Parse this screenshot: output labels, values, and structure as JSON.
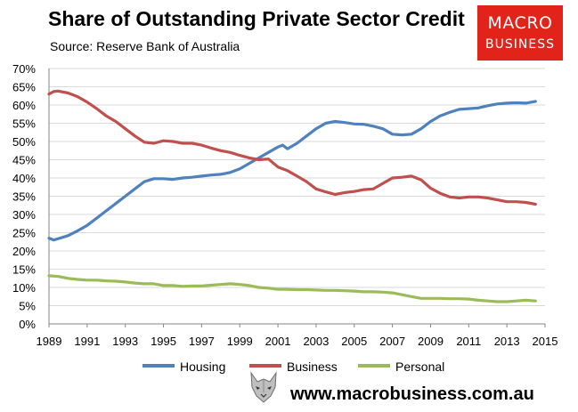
{
  "header": {
    "title": "Share of Outstanding Private Sector Credit",
    "source": "Source: Reserve Bank of Australia"
  },
  "logo": {
    "line1": "MACRO",
    "line2": "BUSINESS"
  },
  "footer": {
    "website": "www.macrobusiness.com.au"
  },
  "colors": {
    "housing": "#4f81bd",
    "business": "#c0504d",
    "personal": "#9bbb59",
    "logo": "#e2231a",
    "grid": "#d9d9d9"
  },
  "chart_data": {
    "type": "line",
    "title": "Share of Outstanding Private Sector Credit",
    "xlabel": "",
    "ylabel": "",
    "xlim": [
      1989,
      2015
    ],
    "ylim": [
      0,
      70
    ],
    "x_ticks": [
      "1989",
      "1991",
      "1993",
      "1995",
      "1997",
      "1999",
      "2001",
      "2003",
      "2005",
      "2007",
      "2009",
      "2011",
      "2013",
      "2015"
    ],
    "y_ticks": [
      "0%",
      "5%",
      "10%",
      "15%",
      "20%",
      "25%",
      "30%",
      "35%",
      "40%",
      "45%",
      "50%",
      "55%",
      "60%",
      "65%",
      "70%"
    ],
    "legend_position": "bottom",
    "series": [
      {
        "name": "Housing",
        "x": [
          1989,
          1989.25,
          1989.5,
          1990,
          1990.5,
          1991,
          1991.5,
          1992,
          1992.5,
          1993,
          1993.5,
          1994,
          1994.5,
          1995,
          1995.5,
          1996,
          1996.5,
          1997,
          1997.5,
          1998,
          1998.5,
          1999,
          1999.5,
          2000,
          2000.5,
          2001,
          2001.25,
          2001.5,
          2002,
          2002.5,
          2003,
          2003.5,
          2004,
          2004.5,
          2005,
          2005.5,
          2006,
          2006.5,
          2007,
          2007.5,
          2008,
          2008.5,
          2009,
          2009.5,
          2010,
          2010.5,
          2011,
          2011.5,
          2012,
          2012.5,
          2013,
          2013.5,
          2014,
          2014.5
        ],
        "values": [
          23.5,
          23.0,
          23.4,
          24.2,
          25.5,
          27.0,
          29.0,
          31.0,
          33.0,
          35.0,
          37.0,
          39.0,
          39.8,
          39.8,
          39.6,
          40.0,
          40.2,
          40.5,
          40.8,
          41.0,
          41.5,
          42.5,
          44.0,
          45.5,
          47.0,
          48.5,
          49.0,
          48.0,
          49.5,
          51.5,
          53.5,
          55.0,
          55.5,
          55.2,
          54.8,
          54.7,
          54.2,
          53.5,
          52.0,
          51.8,
          52.0,
          53.5,
          55.5,
          57.0,
          58.0,
          58.8,
          59.0,
          59.2,
          59.8,
          60.3,
          60.5,
          60.6,
          60.5,
          61.0
        ]
      },
      {
        "name": "Business",
        "x": [
          1989,
          1989.25,
          1989.5,
          1990,
          1990.5,
          1991,
          1991.5,
          1992,
          1992.5,
          1993,
          1993.5,
          1994,
          1994.5,
          1995,
          1995.5,
          1996,
          1996.5,
          1997,
          1997.5,
          1998,
          1998.5,
          1999,
          1999.5,
          2000,
          2000.5,
          2001,
          2001.5,
          2002,
          2002.5,
          2003,
          2003.5,
          2004,
          2004.5,
          2005,
          2005.5,
          2006,
          2006.5,
          2007,
          2007.5,
          2008,
          2008.5,
          2009,
          2009.5,
          2010,
          2010.5,
          2011,
          2011.5,
          2012,
          2012.5,
          2013,
          2013.5,
          2014,
          2014.5
        ],
        "values": [
          63.0,
          63.7,
          63.8,
          63.3,
          62.3,
          60.8,
          59.0,
          57.0,
          55.5,
          53.5,
          51.5,
          49.8,
          49.5,
          50.2,
          50.0,
          49.5,
          49.5,
          49.0,
          48.2,
          47.5,
          47.0,
          46.2,
          45.5,
          45.0,
          45.2,
          43.0,
          42.0,
          40.5,
          39.0,
          37.0,
          36.2,
          35.5,
          36.0,
          36.3,
          36.8,
          37.0,
          38.5,
          40.0,
          40.2,
          40.5,
          39.5,
          37.2,
          35.8,
          34.8,
          34.5,
          34.8,
          34.8,
          34.5,
          34.0,
          33.5,
          33.5,
          33.3,
          32.8
        ]
      },
      {
        "name": "Personal",
        "x": [
          1989,
          1989.5,
          1990,
          1990.5,
          1991,
          1991.5,
          1992,
          1992.5,
          1993,
          1993.5,
          1994,
          1994.5,
          1995,
          1995.5,
          1996,
          1996.5,
          1997,
          1997.5,
          1998,
          1998.5,
          1999,
          1999.5,
          2000,
          2000.5,
          2001,
          2001.5,
          2002,
          2002.5,
          2003,
          2003.5,
          2004,
          2004.5,
          2005,
          2005.5,
          2006,
          2006.5,
          2007,
          2007.5,
          2008,
          2008.5,
          2009,
          2009.5,
          2010,
          2010.5,
          2011,
          2011.5,
          2012,
          2012.5,
          2013,
          2013.5,
          2014,
          2014.5
        ],
        "values": [
          13.2,
          13.0,
          12.5,
          12.2,
          12.0,
          12.0,
          11.8,
          11.7,
          11.5,
          11.2,
          11.0,
          11.0,
          10.5,
          10.5,
          10.3,
          10.4,
          10.4,
          10.6,
          10.8,
          11.0,
          10.8,
          10.5,
          10.0,
          9.8,
          9.5,
          9.5,
          9.4,
          9.4,
          9.3,
          9.2,
          9.2,
          9.1,
          9.0,
          8.8,
          8.8,
          8.7,
          8.5,
          8.0,
          7.5,
          7.0,
          7.0,
          7.0,
          6.9,
          6.9,
          6.8,
          6.5,
          6.3,
          6.1,
          6.1,
          6.3,
          6.5,
          6.3
        ]
      }
    ]
  }
}
